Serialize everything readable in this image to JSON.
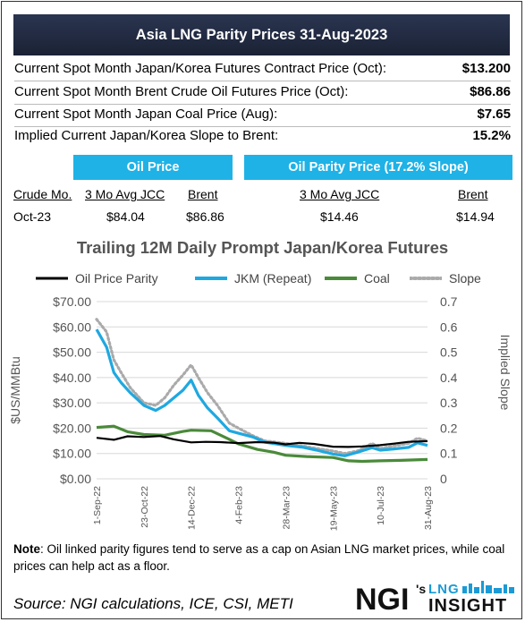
{
  "header": {
    "title": "Asia LNG Parity Prices 31-Aug-2023"
  },
  "summary_rows": [
    {
      "label": "Current Spot Month Japan/Korea Futures Contract Price (Oct):",
      "value": "$13.200"
    },
    {
      "label": "Current Spot Month Brent Crude Oil Futures Price (Oct):",
      "value": "$86.86"
    },
    {
      "label": "Current Spot Month Japan Coal Price (Aug):",
      "value": "$7.65"
    },
    {
      "label": "Implied Current Japan/Korea Slope to Brent:",
      "value": "15.2%"
    }
  ],
  "oil_table": {
    "oil_price_header": "Oil Price",
    "parity_header": "Oil Parity Price (17.2% Slope)",
    "columns": [
      "Crude Mo.",
      "3 Mo Avg JCC",
      "Brent",
      "3 Mo Avg JCC",
      "Brent"
    ],
    "row": [
      "Oct-23",
      "$84.04",
      "$86.86",
      "$14.46",
      "$14.94"
    ]
  },
  "chart_data": {
    "type": "line",
    "title": "Trailing 12M Daily Prompt Japan/Korea Futures",
    "ylabel": "$US/MMBtu",
    "y2label": "Implied Slope",
    "ylim": [
      0,
      70
    ],
    "y2lim": [
      0,
      0.7
    ],
    "yticks": [
      "$0.00",
      "$10.00",
      "$20.00",
      "$30.00",
      "$40.00",
      "$50.00",
      "$60.00",
      "$70.00"
    ],
    "y2ticks": [
      "0",
      "0.1",
      "0.2",
      "0.3",
      "0.4",
      "0.5",
      "0.6",
      "0.7"
    ],
    "x_range": [
      "2022-09-01",
      "2023-08-31"
    ],
    "xticks": [
      "1-Sep-22",
      "23-Oct-22",
      "14-Dec-22",
      "4-Feb-23",
      "28-Mar-23",
      "19-May-23",
      "10-Jul-23",
      "31-Aug-23"
    ],
    "grid": true,
    "legend_position": "top",
    "series": [
      {
        "name": "Oil Price Parity",
        "color": "#000000",
        "axis": "left",
        "style": "solid",
        "points": [
          [
            "2022-09-01",
            16.2
          ],
          [
            "2022-09-20",
            15.4
          ],
          [
            "2022-10-05",
            16.8
          ],
          [
            "2022-10-23",
            16.5
          ],
          [
            "2022-11-10",
            16.9
          ],
          [
            "2022-11-25",
            15.6
          ],
          [
            "2022-12-14",
            14.4
          ],
          [
            "2022-12-30",
            14.6
          ],
          [
            "2023-01-15",
            14.5
          ],
          [
            "2023-02-04",
            14.1
          ],
          [
            "2023-02-25",
            14.5
          ],
          [
            "2023-03-15",
            14.3
          ],
          [
            "2023-03-28",
            13.6
          ],
          [
            "2023-04-12",
            14.2
          ],
          [
            "2023-04-28",
            13.8
          ],
          [
            "2023-05-19",
            12.7
          ],
          [
            "2023-06-05",
            12.6
          ],
          [
            "2023-06-20",
            12.8
          ],
          [
            "2023-07-10",
            13.3
          ],
          [
            "2023-07-25",
            13.9
          ],
          [
            "2023-08-10",
            14.6
          ],
          [
            "2023-08-31",
            14.9
          ]
        ]
      },
      {
        "name": "JKM (Repeat)",
        "color": "#1fa8e0",
        "axis": "left",
        "style": "solid",
        "points": [
          [
            "2022-09-01",
            59
          ],
          [
            "2022-09-12",
            52
          ],
          [
            "2022-09-20",
            42
          ],
          [
            "2022-09-28",
            38
          ],
          [
            "2022-10-08",
            34
          ],
          [
            "2022-10-23",
            29
          ],
          [
            "2022-11-05",
            27
          ],
          [
            "2022-11-15",
            29
          ],
          [
            "2022-11-25",
            32
          ],
          [
            "2022-12-05",
            35
          ],
          [
            "2022-12-14",
            39
          ],
          [
            "2022-12-22",
            33
          ],
          [
            "2023-01-01",
            28
          ],
          [
            "2023-01-12",
            24
          ],
          [
            "2023-01-25",
            19
          ],
          [
            "2023-02-04",
            18
          ],
          [
            "2023-02-20",
            16.5
          ],
          [
            "2023-03-05",
            14.5
          ],
          [
            "2023-03-28",
            13.2
          ],
          [
            "2023-04-15",
            12.5
          ],
          [
            "2023-05-01",
            11.3
          ],
          [
            "2023-05-19",
            9.8
          ],
          [
            "2023-06-01",
            9.1
          ],
          [
            "2023-06-15",
            10.5
          ],
          [
            "2023-07-01",
            12.3
          ],
          [
            "2023-07-10",
            11.3
          ],
          [
            "2023-07-25",
            11.8
          ],
          [
            "2023-08-10",
            12.4
          ],
          [
            "2023-08-20",
            14.2
          ],
          [
            "2023-08-31",
            13.2
          ]
        ]
      },
      {
        "name": "Coal",
        "color": "#4a8a3a",
        "axis": "left",
        "style": "solid",
        "points": [
          [
            "2022-09-01",
            20.3
          ],
          [
            "2022-09-20",
            20.8
          ],
          [
            "2022-10-05",
            18.6
          ],
          [
            "2022-10-23",
            17.5
          ],
          [
            "2022-11-15",
            17.2
          ],
          [
            "2022-12-05",
            18.7
          ],
          [
            "2022-12-14",
            19.2
          ],
          [
            "2023-01-05",
            19.0
          ],
          [
            "2023-01-25",
            15.6
          ],
          [
            "2023-02-04",
            13.8
          ],
          [
            "2023-02-25",
            11.6
          ],
          [
            "2023-03-15",
            10.5
          ],
          [
            "2023-03-28",
            9.3
          ],
          [
            "2023-04-20",
            8.8
          ],
          [
            "2023-05-19",
            8.4
          ],
          [
            "2023-06-05",
            7.1
          ],
          [
            "2023-06-20",
            6.9
          ],
          [
            "2023-07-10",
            7.1
          ],
          [
            "2023-08-01",
            7.3
          ],
          [
            "2023-08-31",
            7.65
          ]
        ]
      },
      {
        "name": "Slope",
        "color": "#aaaaaa",
        "axis": "right",
        "style": "dotted",
        "points": [
          [
            "2022-09-01",
            0.63
          ],
          [
            "2022-09-12",
            0.58
          ],
          [
            "2022-09-20",
            0.47
          ],
          [
            "2022-09-28",
            0.42
          ],
          [
            "2022-10-08",
            0.36
          ],
          [
            "2022-10-23",
            0.3
          ],
          [
            "2022-11-05",
            0.29
          ],
          [
            "2022-11-15",
            0.32
          ],
          [
            "2022-11-25",
            0.37
          ],
          [
            "2022-12-05",
            0.41
          ],
          [
            "2022-12-14",
            0.45
          ],
          [
            "2022-12-22",
            0.4
          ],
          [
            "2023-01-01",
            0.34
          ],
          [
            "2023-01-12",
            0.29
          ],
          [
            "2023-01-25",
            0.22
          ],
          [
            "2023-02-04",
            0.2
          ],
          [
            "2023-02-20",
            0.17
          ],
          [
            "2023-03-05",
            0.15
          ],
          [
            "2023-03-28",
            0.14
          ],
          [
            "2023-04-15",
            0.13
          ],
          [
            "2023-05-01",
            0.12
          ],
          [
            "2023-05-19",
            0.11
          ],
          [
            "2023-06-01",
            0.1
          ],
          [
            "2023-06-15",
            0.11
          ],
          [
            "2023-07-01",
            0.14
          ],
          [
            "2023-07-10",
            0.12
          ],
          [
            "2023-07-25",
            0.13
          ],
          [
            "2023-08-10",
            0.14
          ],
          [
            "2023-08-20",
            0.16
          ],
          [
            "2023-08-31",
            0.15
          ]
        ]
      }
    ]
  },
  "footer": {
    "note_label": "Note",
    "note_text": ": Oil linked parity figures tend to serve as a cap on Asian LNG market prices, while coal prices can help act as a floor.",
    "source": "Source: NGI calculations, ICE, CSI, METI",
    "logo_main": "NGI",
    "logo_sup": "'s",
    "logo_lng": "LNG",
    "logo_insight": "INSIGHT"
  }
}
